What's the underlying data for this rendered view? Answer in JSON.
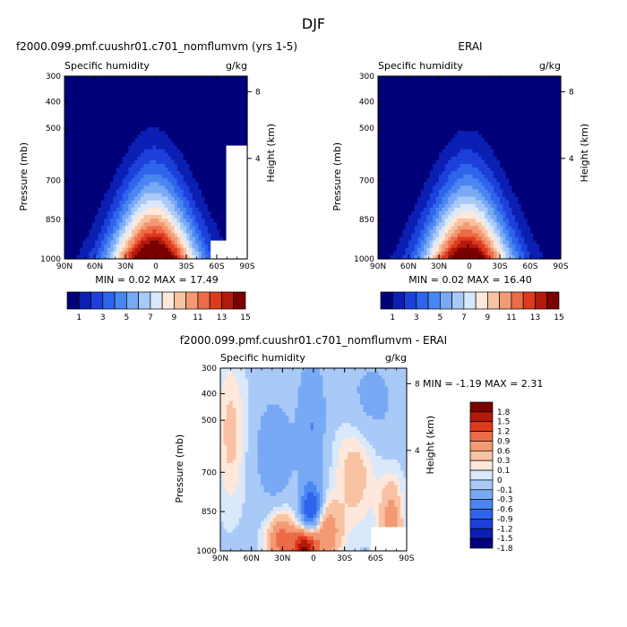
{
  "figure": {
    "title": "DJF",
    "palette_full": [
      "#00007a",
      "#0b1fb3",
      "#1c40d9",
      "#2f64ec",
      "#4a86f2",
      "#78a9f5",
      "#a9c9f7",
      "#d9e8fa",
      "#fde8db",
      "#f8c2a3",
      "#f39a74",
      "#ec6b48",
      "#de3b1e",
      "#b31a0b",
      "#7a0000"
    ],
    "palette_diff": [
      "#00007a",
      "#0b1fb3",
      "#1c40d9",
      "#2f64ec",
      "#4a86f2",
      "#78a9f5",
      "#a9c9f7",
      "#d9e8fa",
      "#fde8db",
      "#f8c2a3",
      "#f39a74",
      "#ec6b48",
      "#de3b1e",
      "#b31a0b",
      "#7a0000"
    ]
  },
  "chart_data": [
    {
      "type": "heatmap",
      "title": "f2000.099.pmf.cuushr01.c701_nomflumvm (yrs 1-5)",
      "left_label": "Specific humidity",
      "right_label": "g/kg",
      "ylabel": "Pressure (mb)",
      "y2label": "Height (km)",
      "x_ticks": [
        "90N",
        "60N",
        "30N",
        "0",
        "30S",
        "60S",
        "90S"
      ],
      "y_ticks": [
        "300",
        "400",
        "500",
        "700",
        "850",
        "1000"
      ],
      "y2_ticks": [
        "8",
        "4"
      ],
      "stats": "MIN =   0.02   MAX =   17.49",
      "min": 0.02,
      "max": 17.49,
      "colorbar_labels": [
        "1",
        "3",
        "5",
        "7",
        "9",
        "11",
        "13",
        "15"
      ],
      "field": {
        "peak_lat": 2,
        "peak_val": 17.49,
        "lat_width": 24,
        "plev": 240,
        "p_center": 1000,
        "missing_corner": true
      }
    },
    {
      "type": "heatmap",
      "title": "ERAI",
      "left_label": "Specific humidity",
      "right_label": "g/kg",
      "ylabel": "Pressure (mb)",
      "y2label": "Height (km)",
      "x_ticks": [
        "90N",
        "60N",
        "30N",
        "0",
        "30S",
        "60S",
        "90S"
      ],
      "y_ticks": [
        "300",
        "400",
        "500",
        "700",
        "850",
        "1000"
      ],
      "y2_ticks": [
        "8",
        "4"
      ],
      "stats": "MIN =   0.02   MAX =   16.40",
      "min": 0.02,
      "max": 16.4,
      "colorbar_labels": [
        "1",
        "3",
        "5",
        "7",
        "9",
        "11",
        "13",
        "15"
      ],
      "field": {
        "peak_lat": 2,
        "peak_val": 16.4,
        "lat_width": 24,
        "plev": 240,
        "p_center": 1000,
        "missing_corner": false
      }
    },
    {
      "type": "heatmap",
      "title": "f2000.099.pmf.cuushr01.c701_nomflumvm - ERAI",
      "left_label": "Specific humidity",
      "right_label": "g/kg",
      "ylabel": "Pressure (mb)",
      "y2label": "Height (km)",
      "x_ticks": [
        "90N",
        "60N",
        "30N",
        "0",
        "30S",
        "60S",
        "90S"
      ],
      "y_ticks": [
        "300",
        "400",
        "500",
        "700",
        "850",
        "1000"
      ],
      "y2_ticks": [
        "8",
        "4"
      ],
      "stats": "MIN =   -1.19   MAX =    2.31",
      "min": -1.19,
      "max": 2.31,
      "colorbar_labels": [
        "1.8",
        "1.5",
        "1.2",
        "0.9",
        "0.6",
        "0.3",
        "0.1",
        "0",
        "-0.1",
        "-0.3",
        "-0.6",
        "-0.9",
        "-1.2",
        "-1.5",
        "-1.8"
      ]
    }
  ]
}
